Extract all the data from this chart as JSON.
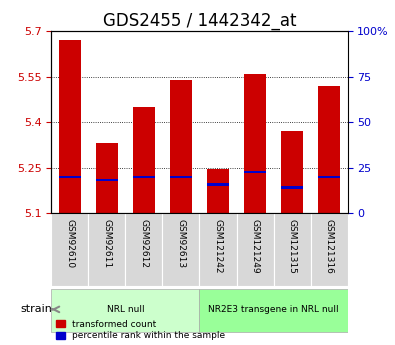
{
  "title": "GDS2455 / 1442342_at",
  "samples": [
    "GSM92610",
    "GSM92611",
    "GSM92612",
    "GSM92613",
    "GSM121242",
    "GSM121249",
    "GSM121315",
    "GSM121316"
  ],
  "bar_values": [
    5.67,
    5.33,
    5.45,
    5.54,
    5.245,
    5.56,
    5.37,
    5.52
  ],
  "blue_markers": [
    5.22,
    5.21,
    5.22,
    5.22,
    5.195,
    5.235,
    5.185,
    5.22
  ],
  "ymin": 5.1,
  "ymax": 5.7,
  "yticks_left": [
    5.1,
    5.25,
    5.4,
    5.55,
    5.7
  ],
  "yticks_right": [
    0,
    25,
    50,
    75,
    100
  ],
  "yticks_right_labels": [
    "0",
    "25",
    "50",
    "75",
    "100%"
  ],
  "bar_color": "#cc0000",
  "blue_color": "#0000cc",
  "groups": [
    {
      "label": "NRL null",
      "start": 0,
      "end": 4,
      "color": "#ccffcc"
    },
    {
      "label": "NR2E3 transgene in NRL null",
      "start": 4,
      "end": 8,
      "color": "#99ff99"
    }
  ],
  "strain_label": "strain",
  "legend_items": [
    {
      "color": "#cc0000",
      "label": "transformed count"
    },
    {
      "color": "#0000cc",
      "label": "percentile rank within the sample"
    }
  ],
  "bar_width": 0.6,
  "tick_label_color_left": "#cc0000",
  "tick_label_color_right": "#0000cc",
  "bg_color": "#ffffff",
  "plot_bg": "#ffffff",
  "title_fontsize": 12,
  "axis_fontsize": 8,
  "group_fontsize": 8,
  "grid_dotted_at": [
    5.25,
    5.4,
    5.55
  ]
}
